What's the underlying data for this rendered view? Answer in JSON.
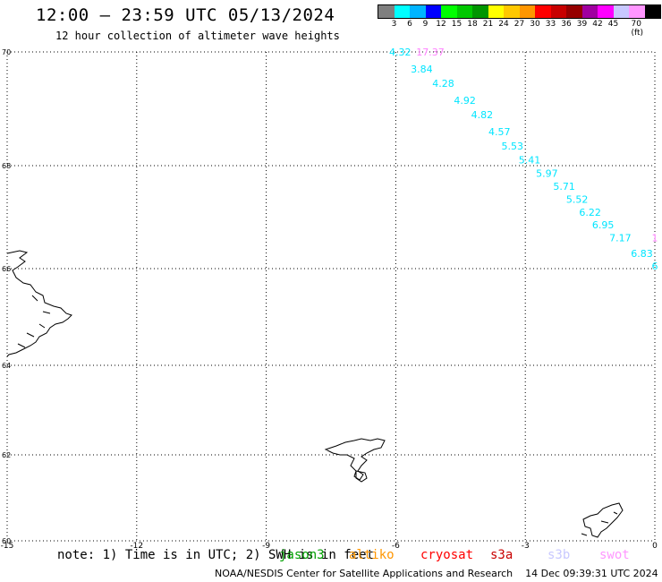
{
  "header": {
    "title": "12:00 – 23:59 UTC 05/13/2024",
    "subtitle": "12 hour collection of altimeter wave heights"
  },
  "colorbar": {
    "colors": [
      "#7f7f7f",
      "#00ffff",
      "#00b4ff",
      "#0000ff",
      "#00ff00",
      "#00c800",
      "#009600",
      "#ffff00",
      "#ffc800",
      "#ff9600",
      "#ff0000",
      "#c80000",
      "#960000",
      "#a000a0",
      "#ff00ff",
      "#c8c8ff",
      "#ff96ff",
      "#000000"
    ],
    "labels": [
      "3",
      "6",
      "9",
      "12",
      "15",
      "18",
      "21",
      "24",
      "27",
      "30",
      "33",
      "36",
      "39",
      "42",
      "45",
      "70 (ft)"
    ]
  },
  "map": {
    "lon_ticks": [
      "-15",
      "-12",
      "-9",
      "-6",
      "-3",
      "0"
    ],
    "lat_ticks": [
      "70",
      "68",
      "66",
      "64",
      "62",
      "60"
    ],
    "wave_heights_cyan": [
      {
        "label": "4.32",
        "lon": -5.9,
        "lat": 70.0
      },
      {
        "label": "3.84",
        "lon": -5.4,
        "lat": 69.7
      },
      {
        "label": "4.28",
        "lon": -4.9,
        "lat": 69.45
      },
      {
        "label": "4.92",
        "lon": -4.4,
        "lat": 69.15
      },
      {
        "label": "4.82",
        "lon": -4.0,
        "lat": 68.9
      },
      {
        "label": "4.57",
        "lon": -3.6,
        "lat": 68.6
      },
      {
        "label": "5.53",
        "lon": -3.3,
        "lat": 68.35
      },
      {
        "label": "5.41",
        "lon": -2.9,
        "lat": 68.1
      },
      {
        "label": "5.97",
        "lon": -2.5,
        "lat": 67.85
      },
      {
        "label": "5.71",
        "lon": -2.1,
        "lat": 67.6
      },
      {
        "label": "5.52",
        "lon": -1.8,
        "lat": 67.35
      },
      {
        "label": "6.22",
        "lon": -1.5,
        "lat": 67.1
      },
      {
        "label": "6.95",
        "lon": -1.2,
        "lat": 66.85
      },
      {
        "label": "7.17",
        "lon": -0.8,
        "lat": 66.6
      },
      {
        "label": "6.83",
        "lon": -0.3,
        "lat": 66.3
      },
      {
        "label": "6",
        "lon": 0.0,
        "lat": 66.05
      }
    ],
    "wave_heights_pink": [
      {
        "label": "17.37",
        "lon": -5.2,
        "lat": 70.0
      },
      {
        "label": "1",
        "lon": 0.0,
        "lat": 66.6
      }
    ]
  },
  "note": "note: 1) Time is in UTC; 2) SWH is in feet",
  "satellites": [
    {
      "name": "jason3",
      "color": "#00a000"
    },
    {
      "name": "altiko",
      "color": "#ff9600"
    },
    {
      "name": "cryosat",
      "color": "#ff0000"
    },
    {
      "name": "s3a",
      "color": "#c80000"
    },
    {
      "name": "s3b",
      "color": "#c8c8ff"
    },
    {
      "name": "swot",
      "color": "#ff96ff"
    }
  ],
  "footer": {
    "credit": "NOAA/NESDIS Center for Satellite Applications and Research",
    "timestamp": "14 Dec 09:39:31 UTC 2024"
  }
}
